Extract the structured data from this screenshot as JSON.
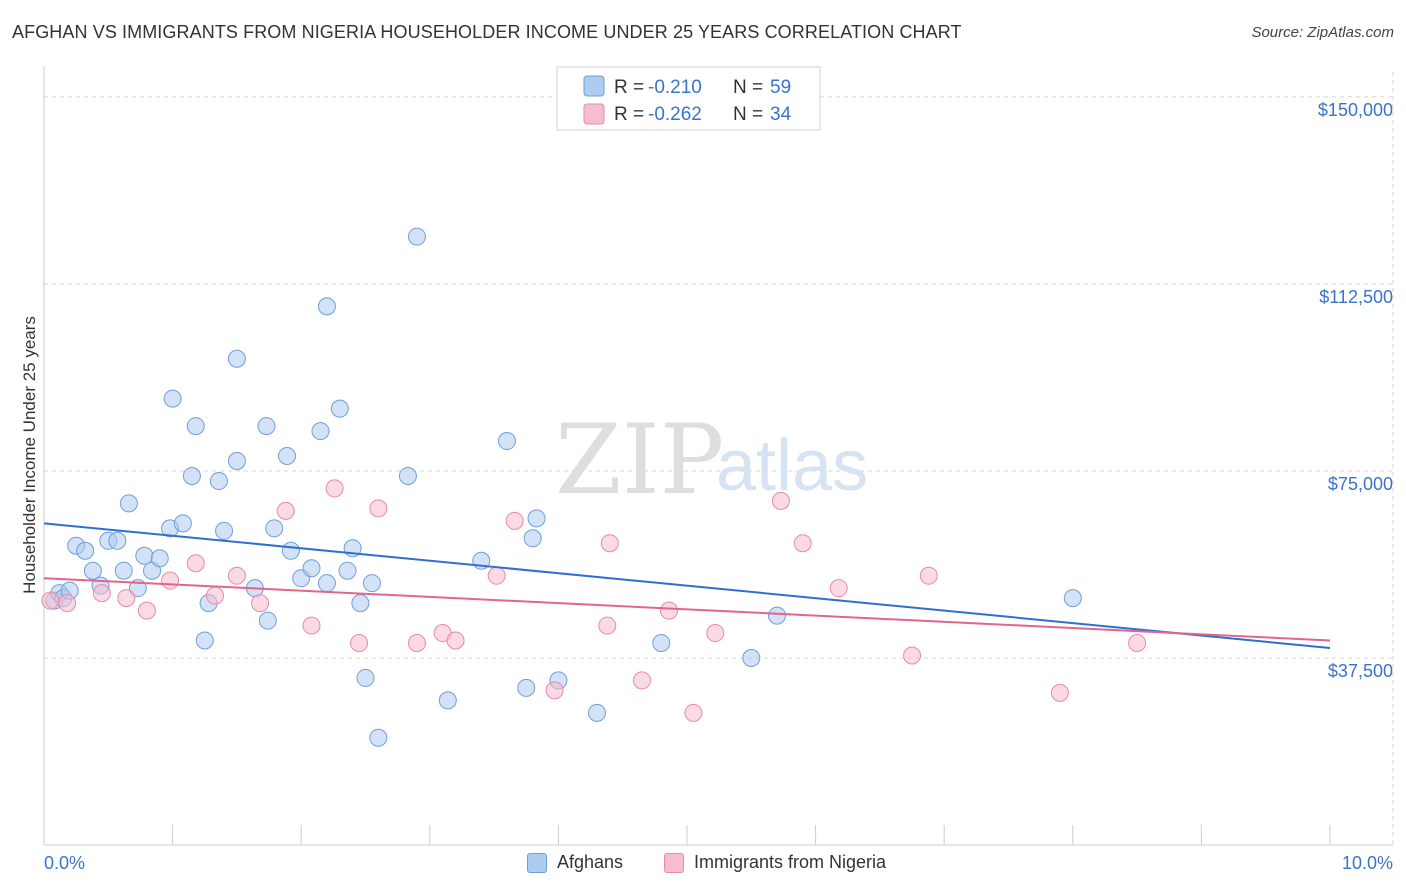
{
  "title": "AFGHAN VS IMMIGRANTS FROM NIGERIA HOUSEHOLDER INCOME UNDER 25 YEARS CORRELATION CHART",
  "source": "Source: ZipAtlas.com",
  "watermark": {
    "zip": "ZIP",
    "atlas": "atlas"
  },
  "colors": {
    "blue_fill": "#aecbf0",
    "blue_stroke": "#6f9fd8",
    "blue_line": "#2f6fcf",
    "pink_fill": "#f7bccf",
    "pink_stroke": "#e88aa8",
    "pink_line": "#e0658f",
    "axis_text": "#3a74c8",
    "grid": "#d5d5d5"
  },
  "stats_legend": [
    {
      "r_label": "R =",
      "r_value": "-0.210",
      "n_label": "N =",
      "n_value": "59"
    },
    {
      "r_label": "R =",
      "r_value": "-0.262",
      "n_label": "N =",
      "n_value": "34"
    }
  ],
  "bottom_legend": [
    "Afghans",
    "Immigrants from Nigeria"
  ],
  "chart_data": {
    "type": "scatter",
    "title": "AFGHAN VS IMMIGRANTS FROM NIGERIA HOUSEHOLDER INCOME UNDER 25 YEARS CORRELATION CHART",
    "xlabel": "",
    "ylabel": "Householder Income Under 25 years",
    "xlim": [
      0,
      10
    ],
    "ylim": [
      0,
      155000
    ],
    "x_tick_labels": [
      "0.0%",
      "10.0%"
    ],
    "y_ticks": [
      37500,
      75000,
      112500,
      150000
    ],
    "y_tick_labels": [
      "$37,500",
      "$75,000",
      "$112,500",
      "$150,000"
    ],
    "legend_position": "top-center",
    "series": [
      {
        "name": "Afghans",
        "R": -0.21,
        "N": 59,
        "trend": {
          "x": [
            0,
            10
          ],
          "y": [
            64500,
            39500
          ]
        },
        "points": [
          {
            "x": 0.08,
            "y": 49000
          },
          {
            "x": 0.12,
            "y": 50500
          },
          {
            "x": 0.15,
            "y": 49500
          },
          {
            "x": 0.2,
            "y": 51000
          },
          {
            "x": 0.25,
            "y": 60000
          },
          {
            "x": 0.32,
            "y": 59000
          },
          {
            "x": 0.38,
            "y": 55000
          },
          {
            "x": 0.44,
            "y": 52000
          },
          {
            "x": 0.5,
            "y": 61000
          },
          {
            "x": 0.57,
            "y": 61000
          },
          {
            "x": 0.62,
            "y": 55000
          },
          {
            "x": 0.66,
            "y": 68500
          },
          {
            "x": 0.73,
            "y": 51500
          },
          {
            "x": 0.78,
            "y": 58000
          },
          {
            "x": 0.84,
            "y": 55000
          },
          {
            "x": 0.9,
            "y": 57500
          },
          {
            "x": 0.98,
            "y": 63500
          },
          {
            "x": 1.0,
            "y": 89500
          },
          {
            "x": 1.08,
            "y": 64500
          },
          {
            "x": 1.15,
            "y": 74000
          },
          {
            "x": 1.18,
            "y": 84000
          },
          {
            "x": 1.25,
            "y": 41000
          },
          {
            "x": 1.28,
            "y": 48500
          },
          {
            "x": 1.36,
            "y": 73000
          },
          {
            "x": 1.4,
            "y": 63000
          },
          {
            "x": 1.5,
            "y": 77000
          },
          {
            "x": 1.5,
            "y": 97500
          },
          {
            "x": 1.64,
            "y": 51500
          },
          {
            "x": 1.73,
            "y": 84000
          },
          {
            "x": 1.74,
            "y": 45000
          },
          {
            "x": 1.79,
            "y": 63500
          },
          {
            "x": 1.89,
            "y": 78000
          },
          {
            "x": 1.92,
            "y": 59000
          },
          {
            "x": 2.0,
            "y": 53500
          },
          {
            "x": 2.08,
            "y": 55500
          },
          {
            "x": 2.15,
            "y": 83000
          },
          {
            "x": 2.2,
            "y": 108000
          },
          {
            "x": 2.2,
            "y": 52500
          },
          {
            "x": 2.3,
            "y": 87500
          },
          {
            "x": 2.36,
            "y": 55000
          },
          {
            "x": 2.4,
            "y": 59500
          },
          {
            "x": 2.46,
            "y": 48500
          },
          {
            "x": 2.5,
            "y": 33500
          },
          {
            "x": 2.55,
            "y": 52500
          },
          {
            "x": 2.6,
            "y": 21500
          },
          {
            "x": 2.83,
            "y": 74000
          },
          {
            "x": 2.9,
            "y": 122000
          },
          {
            "x": 3.14,
            "y": 29000
          },
          {
            "x": 3.4,
            "y": 57000
          },
          {
            "x": 3.6,
            "y": 81000
          },
          {
            "x": 3.75,
            "y": 31500
          },
          {
            "x": 3.8,
            "y": 61500
          },
          {
            "x": 3.83,
            "y": 65500
          },
          {
            "x": 4.0,
            "y": 33000
          },
          {
            "x": 4.3,
            "y": 26500
          },
          {
            "x": 4.8,
            "y": 40500
          },
          {
            "x": 5.5,
            "y": 37500
          },
          {
            "x": 5.7,
            "y": 46000
          },
          {
            "x": 8.0,
            "y": 49500
          }
        ]
      },
      {
        "name": "Immigrants from Nigeria",
        "R": -0.262,
        "N": 34,
        "trend": {
          "x": [
            0,
            10
          ],
          "y": [
            53500,
            41000
          ]
        },
        "points": [
          {
            "x": 0.05,
            "y": 49000
          },
          {
            "x": 0.18,
            "y": 48500
          },
          {
            "x": 0.45,
            "y": 50500
          },
          {
            "x": 0.64,
            "y": 49500
          },
          {
            "x": 0.8,
            "y": 47000
          },
          {
            "x": 0.98,
            "y": 53000
          },
          {
            "x": 1.18,
            "y": 56500
          },
          {
            "x": 1.33,
            "y": 50000
          },
          {
            "x": 1.5,
            "y": 54000
          },
          {
            "x": 1.68,
            "y": 48500
          },
          {
            "x": 1.88,
            "y": 67000
          },
          {
            "x": 2.08,
            "y": 44000
          },
          {
            "x": 2.26,
            "y": 71500
          },
          {
            "x": 2.45,
            "y": 40500
          },
          {
            "x": 2.6,
            "y": 67500
          },
          {
            "x": 2.9,
            "y": 40500
          },
          {
            "x": 3.1,
            "y": 42500
          },
          {
            "x": 3.2,
            "y": 41000
          },
          {
            "x": 3.52,
            "y": 54000
          },
          {
            "x": 3.66,
            "y": 65000
          },
          {
            "x": 3.97,
            "y": 31000
          },
          {
            "x": 4.38,
            "y": 44000
          },
          {
            "x": 4.4,
            "y": 60500
          },
          {
            "x": 4.65,
            "y": 33000
          },
          {
            "x": 4.86,
            "y": 47000
          },
          {
            "x": 5.05,
            "y": 26500
          },
          {
            "x": 5.22,
            "y": 42500
          },
          {
            "x": 5.73,
            "y": 69000
          },
          {
            "x": 5.9,
            "y": 60500
          },
          {
            "x": 6.18,
            "y": 51500
          },
          {
            "x": 6.75,
            "y": 38000
          },
          {
            "x": 6.88,
            "y": 54000
          },
          {
            "x": 7.9,
            "y": 30500
          },
          {
            "x": 8.5,
            "y": 40500
          }
        ]
      }
    ]
  }
}
